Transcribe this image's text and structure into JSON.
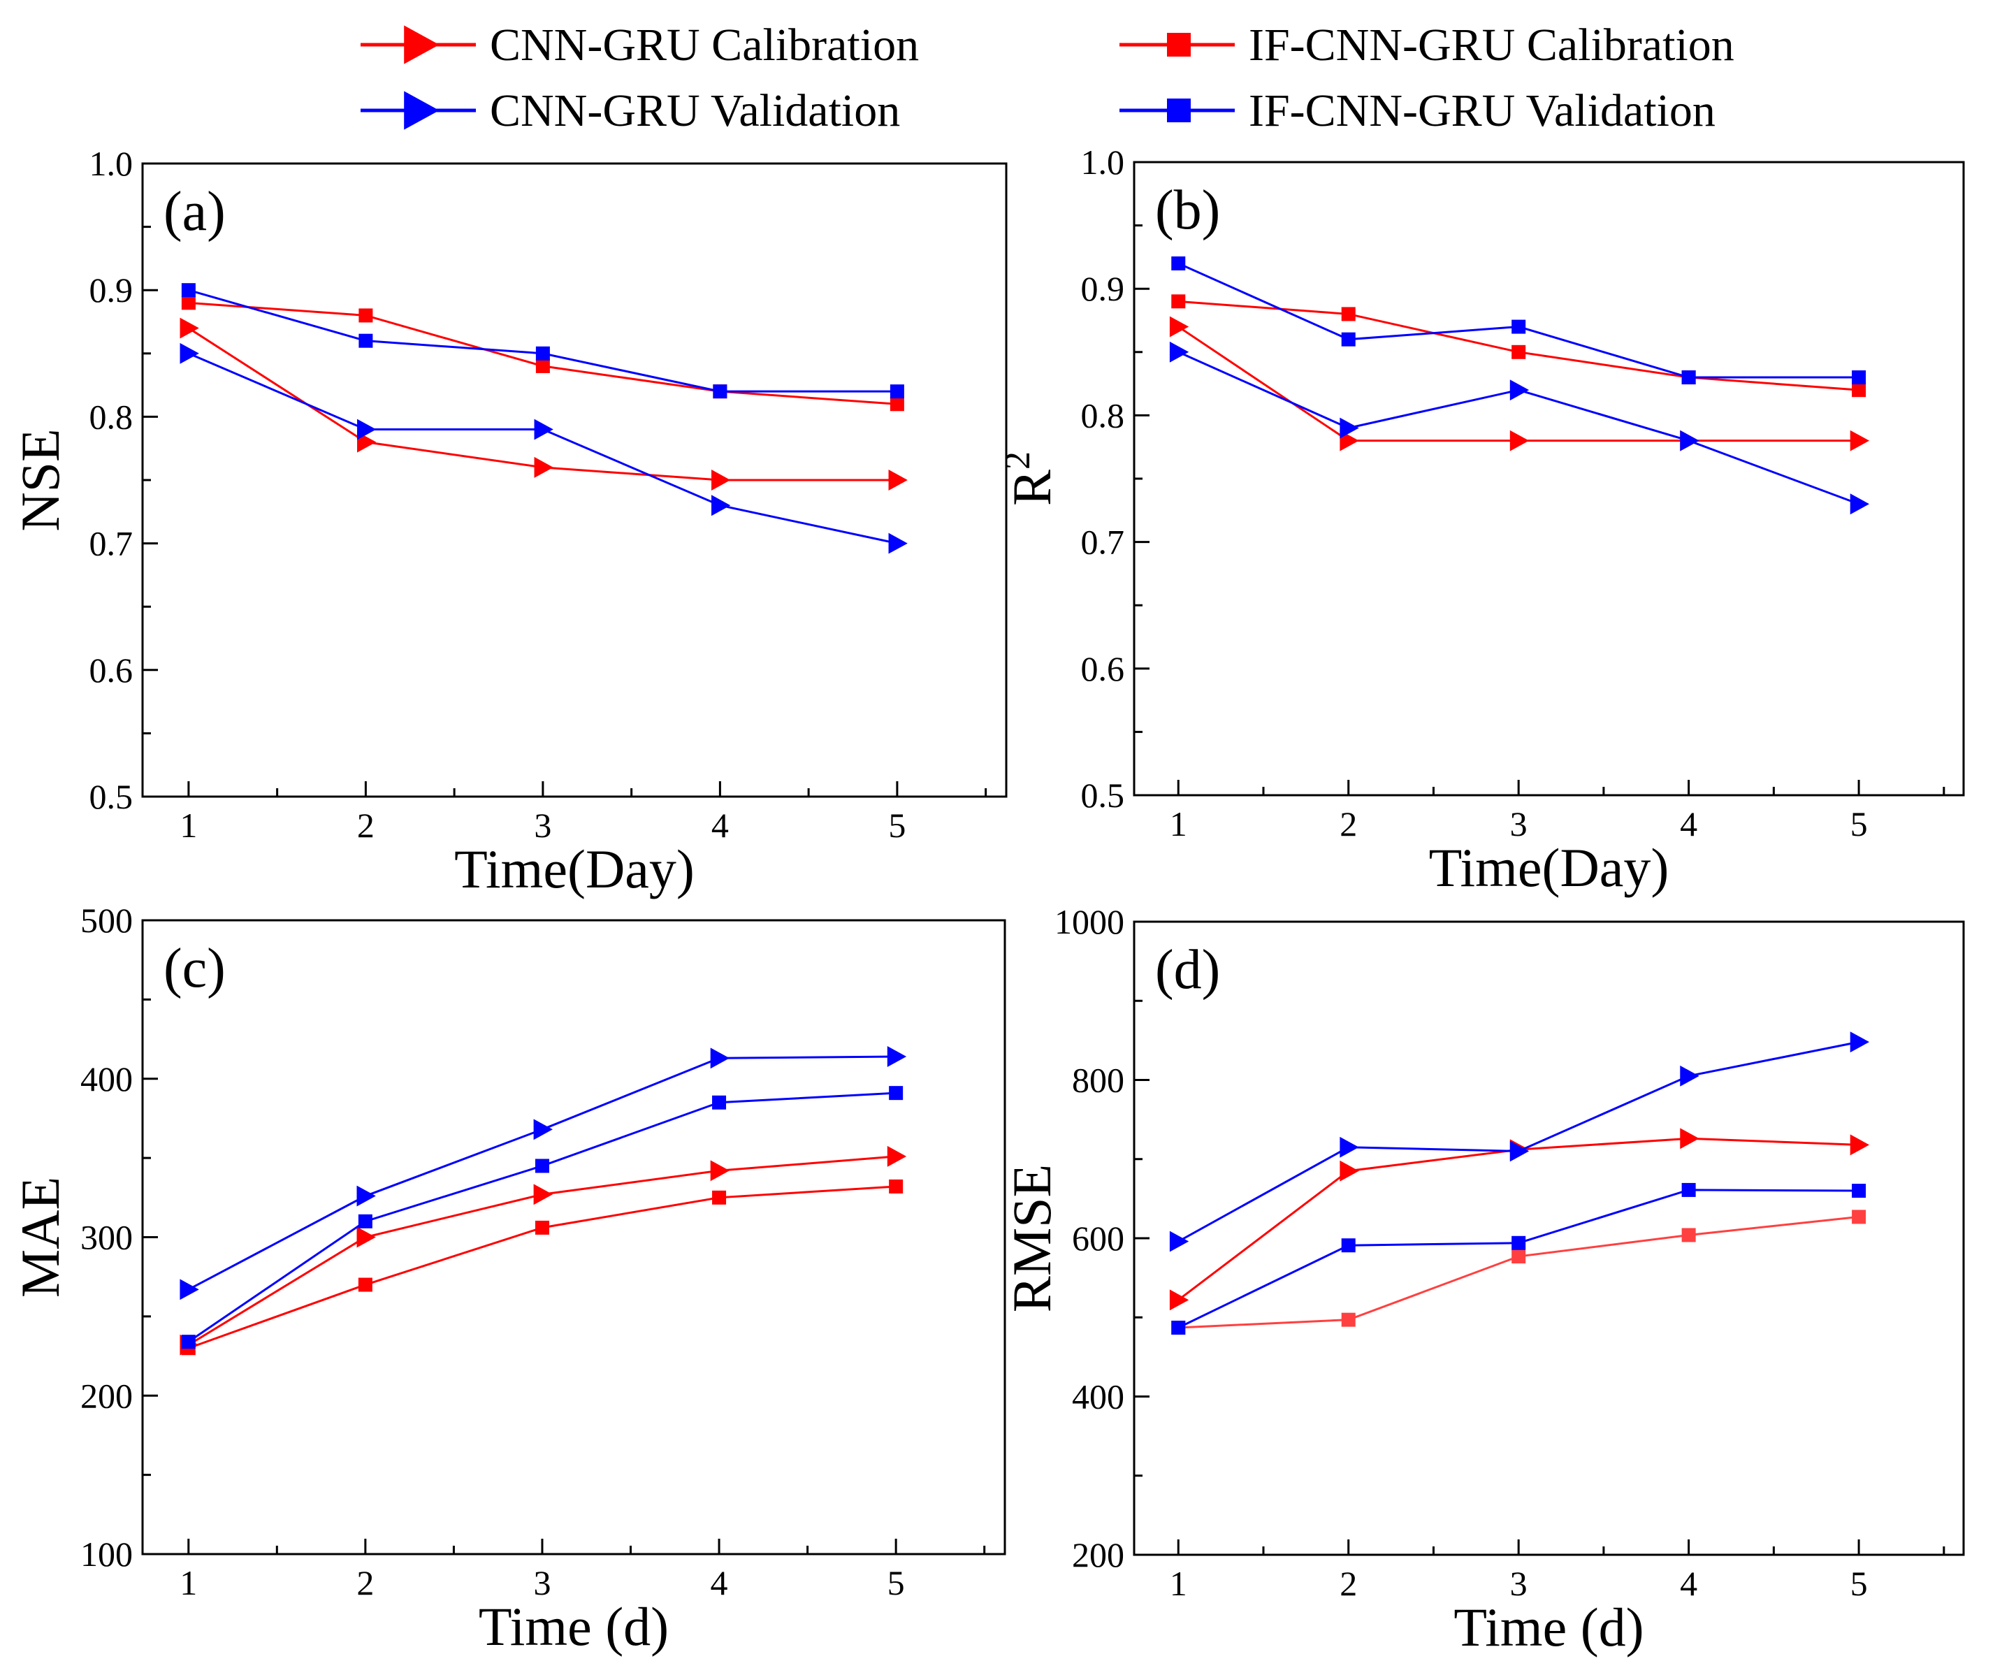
{
  "legend": {
    "entries": [
      {
        "label": "CNN-GRU Calibration",
        "series": "cnn_cal",
        "color": "#ff0000",
        "marker": "triangle-right"
      },
      {
        "label": "IF-CNN-GRU Calibration",
        "series": "if_cal",
        "color": "#ff0000",
        "marker": "square"
      },
      {
        "label": "CNN-GRU Validation",
        "series": "cnn_val",
        "color": "#0000ff",
        "marker": "triangle-right"
      },
      {
        "label": "IF-CNN-GRU Validation",
        "series": "if_val",
        "color": "#0000ff",
        "marker": "square"
      }
    ]
  },
  "chart_data": [
    {
      "panel": "(a)",
      "type": "line",
      "xlabel": "Time(Day)",
      "ylabel": "NSE",
      "ylabel_sup": "",
      "x": [
        1,
        2,
        3,
        4,
        5
      ],
      "xticks": [
        "1",
        "2",
        "3",
        "4",
        "5"
      ],
      "ylim": [
        0.5,
        1.0
      ],
      "yticks": [
        "0.5",
        "0.6",
        "0.7",
        "0.8",
        "0.9",
        "1.0"
      ],
      "series": [
        {
          "name": "CNN-GRU Calibration",
          "key": "cnn_cal",
          "color": "#ff0000",
          "marker": "triangle-right",
          "values": [
            0.87,
            0.78,
            0.76,
            0.75,
            0.75
          ]
        },
        {
          "name": "CNN-GRU Validation",
          "key": "cnn_val",
          "color": "#0000ff",
          "marker": "triangle-right",
          "values": [
            0.85,
            0.79,
            0.79,
            0.73,
            0.7
          ]
        },
        {
          "name": "IF-CNN-GRU Calibration",
          "key": "if_cal",
          "color": "#ff0000",
          "marker": "square",
          "values": [
            0.89,
            0.88,
            0.84,
            0.82,
            0.81
          ]
        },
        {
          "name": "IF-CNN-GRU Validation",
          "key": "if_val",
          "color": "#0000ff",
          "marker": "square",
          "values": [
            0.9,
            0.86,
            0.85,
            0.82,
            0.82
          ]
        }
      ]
    },
    {
      "panel": "(b)",
      "type": "line",
      "xlabel": "Time(Day)",
      "ylabel": "R",
      "ylabel_sup": "2",
      "x": [
        1,
        2,
        3,
        4,
        5
      ],
      "xticks": [
        "1",
        "2",
        "3",
        "4",
        "5"
      ],
      "ylim": [
        0.5,
        1.0
      ],
      "yticks": [
        "0.5",
        "0.6",
        "0.7",
        "0.8",
        "0.9",
        "1.0"
      ],
      "series": [
        {
          "name": "CNN-GRU Calibration",
          "key": "cnn_cal",
          "color": "#ff0000",
          "marker": "triangle-right",
          "values": [
            0.87,
            0.78,
            0.78,
            0.78,
            0.78
          ]
        },
        {
          "name": "CNN-GRU Validation",
          "key": "cnn_val",
          "color": "#0000ff",
          "marker": "triangle-right",
          "values": [
            0.85,
            0.79,
            0.82,
            0.78,
            0.73
          ]
        },
        {
          "name": "IF-CNN-GRU Calibration",
          "key": "if_cal",
          "color": "#ff0000",
          "marker": "square",
          "values": [
            0.89,
            0.88,
            0.85,
            0.83,
            0.82
          ]
        },
        {
          "name": "IF-CNN-GRU Validation",
          "key": "if_val",
          "color": "#0000ff",
          "marker": "square",
          "values": [
            0.92,
            0.86,
            0.87,
            0.83,
            0.83
          ]
        }
      ]
    },
    {
      "panel": "(c)",
      "type": "line",
      "xlabel": "Time (d)",
      "ylabel": "MAE",
      "ylabel_sup": "",
      "x": [
        1,
        2,
        3,
        4,
        5
      ],
      "xticks": [
        "1",
        "2",
        "3",
        "4",
        "5"
      ],
      "ylim": [
        100,
        500
      ],
      "yticks": [
        "100",
        "200",
        "300",
        "400",
        "500"
      ],
      "series": [
        {
          "name": "CNN-GRU Calibration",
          "key": "cnn_cal",
          "color": "#ff0000",
          "marker": "triangle-right",
          "values": [
            232,
            300,
            327,
            342,
            351
          ]
        },
        {
          "name": "CNN-GRU Validation",
          "key": "cnn_val",
          "color": "#0000ff",
          "marker": "triangle-right",
          "values": [
            267,
            326,
            368,
            413,
            414
          ]
        },
        {
          "name": "IF-CNN-GRU Calibration",
          "key": "if_cal",
          "color": "#ff0000",
          "marker": "square",
          "values": [
            230,
            270,
            306,
            325,
            332
          ]
        },
        {
          "name": "IF-CNN-GRU Validation",
          "key": "if_val",
          "color": "#0000ff",
          "marker": "square",
          "values": [
            234,
            310,
            345,
            385,
            391
          ]
        }
      ]
    },
    {
      "panel": "(d)",
      "type": "line",
      "xlabel": "Time (d)",
      "ylabel": "RMSE",
      "ylabel_sup": "",
      "x": [
        1,
        2,
        3,
        4,
        5
      ],
      "xticks": [
        "1",
        "2",
        "3",
        "4",
        "5"
      ],
      "ylim": [
        200,
        1000
      ],
      "yticks": [
        "200",
        "400",
        "600",
        "800",
        "1000"
      ],
      "series": [
        {
          "name": "CNN-GRU Calibration",
          "key": "cnn_cal",
          "color": "#ff0000",
          "marker": "triangle-right",
          "values": [
            522,
            685,
            712,
            726,
            718
          ]
        },
        {
          "name": "CNN-GRU Validation",
          "key": "cnn_val",
          "color": "#0000ff",
          "marker": "triangle-right",
          "values": [
            596,
            715,
            710,
            805,
            848
          ]
        },
        {
          "name": "IF-CNN-GRU Calibration",
          "key": "if_cal",
          "color": "#ff4040",
          "marker": "square",
          "values": [
            487,
            497,
            577,
            604,
            627
          ]
        },
        {
          "name": "IF-CNN-GRU Validation",
          "key": "if_val",
          "color": "#0000ff",
          "marker": "square",
          "values": [
            487,
            591,
            594,
            661,
            660
          ]
        }
      ]
    }
  ]
}
